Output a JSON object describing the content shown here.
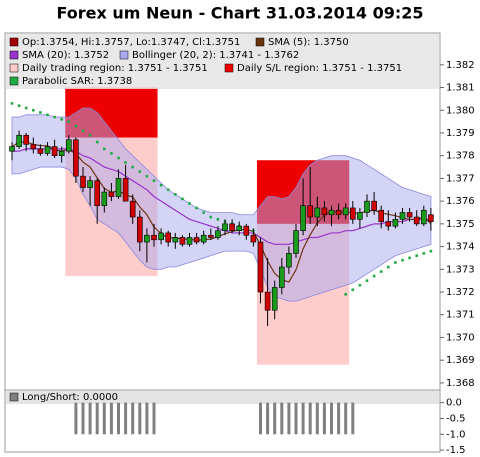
{
  "chart_data": {
    "type": "candlestick",
    "title": "Forex um Neun - Chart 31.03.2014 09:25",
    "ylim": [
      1.3676,
      1.3834
    ],
    "yticks": [
      1.368,
      1.369,
      {
        "value": 1.37,
        "label": "1.370"
      },
      1.371,
      1.372,
      1.373,
      1.374,
      1.375,
      1.376,
      1.377,
      1.378,
      1.379,
      {
        "value": 1.38,
        "label": "1.380"
      },
      1.381,
      1.382
    ],
    "candles": {
      "name": "Op:1.3754, Hi:1.3757, Lo:1.3747, Cl:1.3751",
      "color": "#a00000",
      "up_color": "#1a9a1a",
      "down_color": "#d00000",
      "open": [
        1.3782,
        1.3784,
        1.3789,
        1.3785,
        1.3783,
        1.3781,
        1.3784,
        1.378,
        1.3782,
        1.3787,
        1.3771,
        1.3766,
        1.3769,
        1.3758,
        1.3764,
        1.3762,
        1.377,
        1.376,
        1.3753,
        1.3742,
        1.3745,
        1.3743,
        1.3746,
        1.3742,
        1.3744,
        1.3741,
        1.3744,
        1.3742,
        1.3745,
        1.3744,
        1.3747,
        1.375,
        1.3747,
        1.3749,
        1.3745,
        1.3742,
        1.372,
        1.3712,
        1.3722,
        1.3731,
        1.3737,
        1.3747,
        1.3758,
        1.3753,
        1.3757,
        1.3754,
        1.3756,
        1.3754,
        1.3757,
        1.3752,
        1.3755,
        1.376,
        1.3756,
        1.3751,
        1.3749,
        1.3752,
        1.3755,
        1.3753,
        1.375,
        1.3754
      ],
      "high": [
        1.3786,
        1.3791,
        1.379,
        1.3788,
        1.3785,
        1.3786,
        1.3787,
        1.3784,
        1.3789,
        1.3788,
        1.3775,
        1.3771,
        1.377,
        1.3766,
        1.3768,
        1.3774,
        1.3776,
        1.3763,
        1.3756,
        1.3748,
        1.375,
        1.3748,
        1.3747,
        1.3746,
        1.3745,
        1.3746,
        1.3746,
        1.3747,
        1.3748,
        1.3749,
        1.3752,
        1.3752,
        1.3751,
        1.375,
        1.3748,
        1.3744,
        1.3735,
        1.3725,
        1.3735,
        1.374,
        1.375,
        1.377,
        1.3775,
        1.3762,
        1.376,
        1.3758,
        1.3759,
        1.3759,
        1.376,
        1.3757,
        1.3763,
        1.3764,
        1.3758,
        1.3756,
        1.3755,
        1.3757,
        1.3757,
        1.3756,
        1.3758,
        1.3757
      ],
      "low": [
        1.3778,
        1.3783,
        1.3782,
        1.3781,
        1.378,
        1.378,
        1.3779,
        1.3777,
        1.3781,
        1.3768,
        1.3764,
        1.3758,
        1.375,
        1.3755,
        1.376,
        1.3761,
        1.3762,
        1.375,
        1.3738,
        1.3733,
        1.374,
        1.3741,
        1.374,
        1.3739,
        1.374,
        1.374,
        1.3741,
        1.3741,
        1.3743,
        1.3743,
        1.3745,
        1.3746,
        1.3745,
        1.3743,
        1.374,
        1.3715,
        1.3705,
        1.3708,
        1.3719,
        1.3728,
        1.3735,
        1.3745,
        1.375,
        1.3749,
        1.3751,
        1.3749,
        1.3752,
        1.3752,
        1.375,
        1.3748,
        1.3753,
        1.3754,
        1.3748,
        1.3747,
        1.3748,
        1.375,
        1.3751,
        1.3749,
        1.3749,
        1.3747
      ],
      "close": [
        1.3784,
        1.3789,
        1.3785,
        1.3783,
        1.3781,
        1.3784,
        1.378,
        1.3782,
        1.3787,
        1.3771,
        1.3766,
        1.3769,
        1.3758,
        1.3764,
        1.3762,
        1.377,
        1.376,
        1.3753,
        1.3742,
        1.3745,
        1.3743,
        1.3746,
        1.3742,
        1.3744,
        1.3741,
        1.3744,
        1.3742,
        1.3745,
        1.3744,
        1.3747,
        1.375,
        1.3747,
        1.3749,
        1.3745,
        1.3742,
        1.372,
        1.3712,
        1.3722,
        1.3731,
        1.3737,
        1.3747,
        1.3758,
        1.3753,
        1.3757,
        1.3754,
        1.3756,
        1.3754,
        1.3757,
        1.3752,
        1.3755,
        1.376,
        1.3756,
        1.3751,
        1.3749,
        1.3752,
        1.3755,
        1.3753,
        1.375,
        1.3756,
        1.3751
      ]
    },
    "sma5": {
      "name": "SMA (5): 1.3750",
      "color": "#6b3410",
      "values": [
        1.3784,
        1.3786,
        1.3786,
        1.3785,
        1.37844,
        1.37844,
        1.37826,
        1.3782,
        1.37828,
        1.37808,
        1.37772,
        1.3775,
        1.37702,
        1.37656,
        1.37638,
        1.37646,
        1.37628,
        1.37618,
        1.37574,
        1.3754,
        1.37486,
        1.37458,
        1.37436,
        1.3744,
        1.37432,
        1.37434,
        1.37426,
        1.37432,
        1.37432,
        1.37444,
        1.37456,
        1.37466,
        1.37474,
        1.37476,
        1.37466,
        1.37406,
        1.37336,
        1.37282,
        1.37254,
        1.37244,
        1.37298,
        1.3739,
        1.37452,
        1.37504,
        1.37538,
        1.37556,
        1.37548,
        1.37556,
        1.37546,
        1.37548,
        1.37556,
        1.3756,
        1.37548,
        1.37542,
        1.37536,
        1.37526,
        1.3752,
        1.37518,
        1.37532,
        1.375
      ]
    },
    "sma20": {
      "name": "SMA (20): 1.3752",
      "color": "#9933cc",
      "values": [
        1.3782,
        1.3782,
        1.3783,
        1.3783,
        1.3783,
        1.3783,
        1.3783,
        1.3783,
        1.3783,
        1.3782,
        1.378,
        1.3779,
        1.3777,
        1.3775,
        1.3774,
        1.3773,
        1.3771,
        1.3769,
        1.3767,
        1.3765,
        1.3762,
        1.376,
        1.3758,
        1.3756,
        1.3754,
        1.3752,
        1.3751,
        1.375,
        1.3749,
        1.3748,
        1.3747,
        1.3746,
        1.3746,
        1.3746,
        1.3746,
        1.3744,
        1.3742,
        1.3741,
        1.3741,
        1.3741,
        1.3742,
        1.3743,
        1.3744,
        1.3744,
        1.3745,
        1.3746,
        1.3746,
        1.3747,
        1.3747,
        1.3748,
        1.3749,
        1.375,
        1.375,
        1.3751,
        1.3751,
        1.3751,
        1.3752,
        1.3752,
        1.3752,
        1.3752
      ]
    },
    "bollinger": {
      "name": "Bollinger (20, 2): 1.3741 - 1.3762",
      "color": "#aaaaf0",
      "upper": [
        1.3797,
        1.3797,
        1.3798,
        1.3798,
        1.3798,
        1.3798,
        1.3797,
        1.3797,
        1.3797,
        1.3799,
        1.3801,
        1.3801,
        1.3799,
        1.3795,
        1.3791,
        1.3787,
        1.3783,
        1.378,
        1.3777,
        1.3774,
        1.3771,
        1.3768,
        1.3765,
        1.3763,
        1.3761,
        1.3759,
        1.3757,
        1.3756,
        1.3755,
        1.3755,
        1.3755,
        1.3755,
        1.3754,
        1.3754,
        1.3754,
        1.3758,
        1.3762,
        1.3762,
        1.3761,
        1.3762,
        1.3766,
        1.3772,
        1.3776,
        1.3778,
        1.3779,
        1.378,
        1.378,
        1.378,
        1.3779,
        1.3778,
        1.3776,
        1.3774,
        1.3772,
        1.377,
        1.3768,
        1.3766,
        1.3765,
        1.3764,
        1.3763,
        1.3762
      ],
      "lower": [
        1.3772,
        1.3772,
        1.3773,
        1.3774,
        1.3775,
        1.3775,
        1.3775,
        1.3775,
        1.3774,
        1.377,
        1.3763,
        1.3758,
        1.3752,
        1.375,
        1.3748,
        1.3746,
        1.3742,
        1.3738,
        1.3734,
        1.3731,
        1.373,
        1.373,
        1.3731,
        1.3731,
        1.3732,
        1.3733,
        1.3734,
        1.3735,
        1.3736,
        1.3737,
        1.3738,
        1.3738,
        1.3738,
        1.3738,
        1.3737,
        1.373,
        1.3722,
        1.3718,
        1.3717,
        1.3716,
        1.3716,
        1.3717,
        1.3718,
        1.3719,
        1.372,
        1.3721,
        1.3722,
        1.3723,
        1.3724,
        1.3726,
        1.3728,
        1.373,
        1.3732,
        1.3734,
        1.3736,
        1.3737,
        1.3738,
        1.3739,
        1.374,
        1.3741
      ]
    },
    "trading_region": {
      "name": "Daily trading region: 1.3751 - 1.3751",
      "color": "#ffcccc",
      "regions": [
        {
          "start": 8,
          "end": 20,
          "low": 1.3727,
          "high": 1.3788
        },
        {
          "start": 35,
          "end": 47,
          "low": 1.3688,
          "high": 1.375
        }
      ]
    },
    "sl_region": {
      "name": "Daily S/L region: 1.3751 - 1.3751",
      "color": "#ee0000",
      "regions": [
        {
          "start": 8,
          "end": 20,
          "low": 1.3788,
          "high": 1.381
        },
        {
          "start": 35,
          "end": 47,
          "low": 1.375,
          "high": 1.3778
        }
      ]
    },
    "sar": {
      "name": "Parabolic SAR: 1.3738",
      "color": "#22aa44",
      "values": [
        1.3803,
        1.3802,
        1.3801,
        1.38,
        1.3799,
        1.3798,
        1.3797,
        1.3796,
        1.3795,
        1.3793,
        1.3791,
        1.3789,
        1.3786,
        1.3783,
        1.3781,
        1.3779,
        1.3777,
        1.3775,
        1.3773,
        1.3771,
        1.3769,
        1.3767,
        1.3765,
        1.3763,
        1.3761,
        1.3759,
        1.3757,
        1.3755,
        1.3753,
        1.3752,
        1.3751,
        1.375,
        1.3749,
        1.3748,
        1.3747,
        null,
        null,
        null,
        null,
        null,
        null,
        null,
        null,
        null,
        null,
        null,
        null,
        1.3719,
        1.3721,
        1.3723,
        1.3725,
        1.3727,
        1.3729,
        1.3731,
        1.3733,
        1.3734,
        1.3735,
        1.3736,
        1.3737,
        1.3738
      ]
    },
    "long_short": {
      "name": "Long/Short: 0.0000",
      "color": "#808080",
      "ylim": [
        -1.56,
        0.4
      ],
      "yticks": [
        {
          "value": 0,
          "label": "0.0"
        },
        -0.5,
        {
          "value": -1,
          "label": "-1.0"
        },
        -1.5
      ],
      "values": [
        0,
        0,
        0,
        0,
        0,
        0,
        0,
        0,
        0,
        -1,
        -1,
        -1,
        -1,
        -1,
        -1,
        -1,
        -1,
        -1,
        -1,
        -1,
        -1,
        0,
        0,
        0,
        0,
        0,
        0,
        0,
        0,
        0,
        0,
        0,
        0,
        0,
        0,
        -1,
        -1,
        -1,
        -1,
        -1,
        -1,
        -1,
        -1,
        -1,
        -1,
        -1,
        -1,
        -1,
        -1,
        0,
        0,
        0,
        0,
        0,
        0,
        0,
        0,
        0,
        0,
        0
      ]
    }
  }
}
